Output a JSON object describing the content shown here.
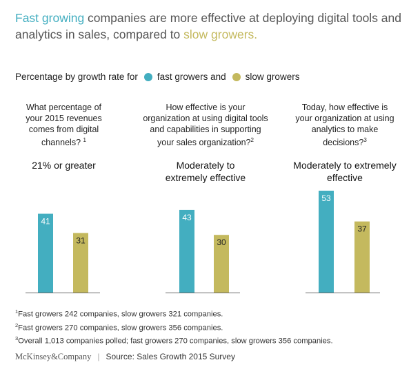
{
  "title": {
    "part1": "Fast growing",
    "part2": " companies are more effective at deploying digital tools and analytics in sales, compared to ",
    "part3": "slow growers."
  },
  "legend": {
    "prefix": "Percentage by growth rate for",
    "fast_label": "fast growers and",
    "slow_label": "slow growers",
    "fast_color": "#43aec0",
    "slow_color": "#c4b95e"
  },
  "chart_data": [
    {
      "type": "bar",
      "question": "What percentage of your 2015 revenues comes from digital channels?",
      "question_note": "1",
      "answer": "21% or greater",
      "categories": [
        "fast growers",
        "slow growers"
      ],
      "values": [
        41,
        31
      ],
      "ylim": [
        0,
        53
      ]
    },
    {
      "type": "bar",
      "question": "How effective is your organization at using digital tools and capabilities in supporting your sales organization?",
      "question_note": "2",
      "answer": "Moderately to extremely effective",
      "categories": [
        "fast growers",
        "slow growers"
      ],
      "values": [
        43,
        30
      ],
      "ylim": [
        0,
        53
      ]
    },
    {
      "type": "bar",
      "question": "Today, how effective is your organization at using analytics to make decisions?",
      "question_note": "3",
      "answer": "Moderately to extremely effective",
      "categories": [
        "fast growers",
        "slow growers"
      ],
      "values": [
        53,
        37
      ],
      "ylim": [
        0,
        53
      ]
    }
  ],
  "footnotes": [
    {
      "num": "1",
      "text": "Fast growers 242 companies, slow growers 321 companies."
    },
    {
      "num": "2",
      "text": "Fast growers 270 companies, slow growers 356 companies."
    },
    {
      "num": "3",
      "text": "Overall 1,013 companies polled; fast growers 270 companies, slow growers 356 companies."
    }
  ],
  "footer": {
    "brand": "McKinsey&Company",
    "separator": "|",
    "source": "Source: Sales Growth 2015 Survey"
  }
}
